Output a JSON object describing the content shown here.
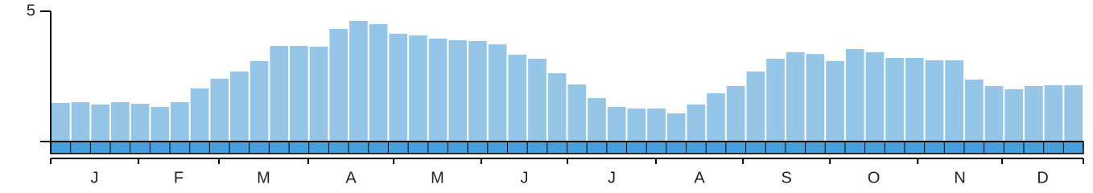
{
  "chart_data": {
    "type": "bar",
    "values": [
      1.48,
      1.51,
      1.42,
      1.51,
      1.45,
      1.33,
      1.51,
      2.04,
      2.41,
      2.69,
      3.09,
      3.67,
      3.67,
      3.64,
      4.32,
      4.63,
      4.51,
      4.14,
      4.07,
      3.95,
      3.89,
      3.86,
      3.73,
      3.33,
      3.18,
      2.62,
      2.19,
      1.67,
      1.33,
      1.27,
      1.27,
      1.08,
      1.42,
      1.85,
      2.13,
      2.69,
      3.18,
      3.43,
      3.36,
      3.09,
      3.55,
      3.43,
      3.21,
      3.21,
      3.12,
      3.12,
      2.38,
      2.13,
      2.01,
      2.13,
      2.16,
      2.16
    ],
    "color": "#95c6e8",
    "band_color": "#4a9fd9",
    "ylim": [
      0,
      5
    ],
    "yticks": [
      5
    ],
    "xlim": [
      0,
      52
    ],
    "xticks": [
      0,
      4.42,
      8.47,
      12.97,
      17.27,
      21.68,
      26.02,
      30.48,
      34.86,
      39.24,
      43.66,
      47.91,
      52
    ],
    "months": [
      "J",
      "F",
      "M",
      "A",
      "M",
      "J",
      "J",
      "A",
      "S",
      "O",
      "N",
      "D"
    ]
  }
}
